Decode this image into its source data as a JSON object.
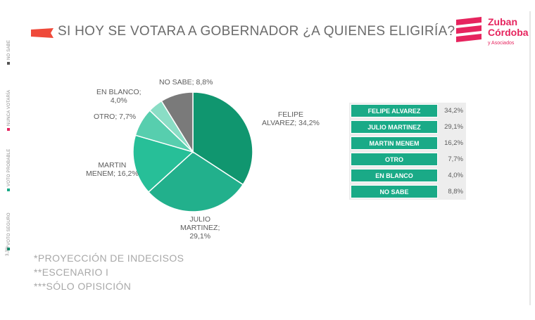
{
  "side_legend": [
    {
      "label": "NO SABE",
      "color": "#555555"
    },
    {
      "label": "NUNCA VOTARÍA",
      "color": "#e6245e"
    },
    {
      "label": "VOTO PROBABLE",
      "color": "#1aaa87"
    },
    {
      "label": "VOTO SEGURO",
      "color": "#0b8a6a"
    },
    {
      "label": "3,3%",
      "color": "#aaaaaa"
    }
  ],
  "header": {
    "title": "SI HOY SE VOTARA A GOBERNADOR ¿A QUIENES ELIGIRÍA?",
    "accent": "#ef4a3a"
  },
  "logo": {
    "line1": "Zuban",
    "line2": "Córdoba",
    "sub": "y Asociados",
    "color": "#e6245e"
  },
  "chart_data": {
    "type": "pie",
    "title": "SI HOY SE VOTARA A GOBERNADOR ¿A QUIENES ELIGIRÍA?",
    "start": "top, clockwise",
    "slices": [
      {
        "label": "FELIPE ALVAREZ",
        "label_lines": [
          "FELIPE",
          "ALVAREZ; 34,2%"
        ],
        "value": 34.2,
        "display": "34,2%",
        "color": "#10966f"
      },
      {
        "label": "JULIO MARTINEZ",
        "label_lines": [
          "JULIO",
          "MARTINEZ;",
          "29,1%"
        ],
        "value": 29.1,
        "display": "29,1%",
        "color": "#22b08c"
      },
      {
        "label": "MARTIN MENEM",
        "label_lines": [
          "MARTIN",
          "MENEM; 16,2%"
        ],
        "value": 16.2,
        "display": "16,2%",
        "color": "#27bf98"
      },
      {
        "label": "OTRO",
        "label_lines": [
          "OTRO; 7,7%"
        ],
        "value": 7.7,
        "display": "7,7%",
        "color": "#57ceae"
      },
      {
        "label": "EN BLANCO",
        "label_lines": [
          "EN BLANCO;",
          "4,0%"
        ],
        "value": 4.0,
        "display": "4,0%",
        "color": "#8addc5"
      },
      {
        "label": "NO SABE",
        "label_lines": [
          "NO SABE; 8,8%"
        ],
        "value": 8.8,
        "display": "8,8%",
        "color": "#7a7a7a"
      }
    ]
  },
  "table": {
    "rows": [
      {
        "name": "FELIPE ALVAREZ",
        "value": "34,2%"
      },
      {
        "name": "JULIO MARTINEZ",
        "value": "29,1%"
      },
      {
        "name": "MARTIN MENEM",
        "value": "16,2%"
      },
      {
        "name": "OTRO",
        "value": "7,7%"
      },
      {
        "name": "EN BLANCO",
        "value": "4,0%"
      },
      {
        "name": "NO SABE",
        "value": "8,8%"
      }
    ]
  },
  "notes": [
    "*PROYECCIÓN DE INDECISOS",
    "**ESCENARIO I",
    "***SÓLO OPISICIÓN"
  ]
}
